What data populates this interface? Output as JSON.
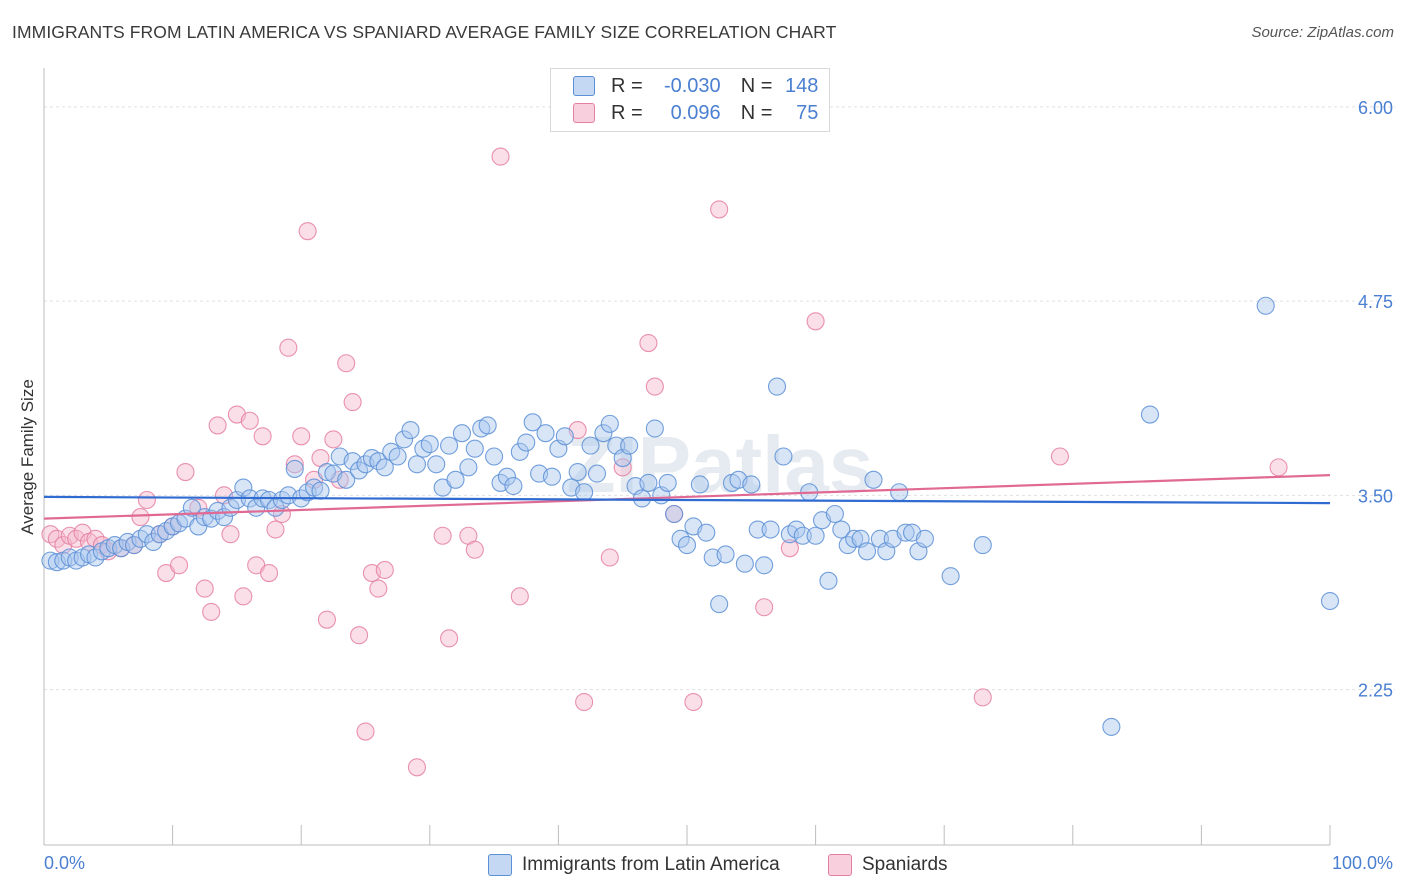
{
  "header": {
    "title": "IMMIGRANTS FROM LATIN AMERICA VS SPANIARD AVERAGE FAMILY SIZE CORRELATION CHART",
    "source": "Source: ZipAtlas.com"
  },
  "legend_top": {
    "rows": [
      {
        "r_label": "R =",
        "r_value": "-0.030",
        "n_label": "N =",
        "n_value": "148"
      },
      {
        "r_label": "R =",
        "r_value": "0.096",
        "n_label": "N =",
        "n_value": "75"
      }
    ]
  },
  "legend_bottom": {
    "series_a": "Immigrants from Latin America",
    "series_b": "Spaniards"
  },
  "colors": {
    "blue_fill": "#a9c6ee",
    "blue_stroke": "#5b8fd6",
    "blue_line": "#2f6bd0",
    "pink_fill": "#f5b8cc",
    "pink_stroke": "#e57fa1",
    "pink_line": "#e06a93",
    "tick_label": "#4a7fd1",
    "grid": "#e0e0e0",
    "watermark": "#dde3ea"
  },
  "chart_data": {
    "type": "scatter",
    "title": "IMMIGRANTS FROM LATIN AMERICA VS SPANIARD AVERAGE FAMILY SIZE CORRELATION CHART",
    "xlabel": "",
    "ylabel": "Average Family Size",
    "xlim": [
      0,
      100
    ],
    "ylim": [
      1.25,
      6.25
    ],
    "x_tick_labels": [
      "0.0%",
      "100.0%"
    ],
    "y_ticks": [
      2.25,
      3.5,
      4.75,
      6.0
    ],
    "y_tick_labels": [
      "2.25",
      "3.50",
      "4.75",
      "6.00"
    ],
    "grid": "horizontal dashed",
    "legend_position": "top-center",
    "watermark": "ZIPatlas",
    "series": [
      {
        "name": "Immigrants from Latin America",
        "R": -0.03,
        "N": 148,
        "trend": [
          [
            0,
            3.49
          ],
          [
            100,
            3.45
          ]
        ],
        "points": [
          [
            0.5,
            3.08
          ],
          [
            1,
            3.07
          ],
          [
            1.5,
            3.08
          ],
          [
            2,
            3.1
          ],
          [
            2.5,
            3.08
          ],
          [
            3,
            3.1
          ],
          [
            3.5,
            3.12
          ],
          [
            4,
            3.1
          ],
          [
            4.5,
            3.14
          ],
          [
            5,
            3.16
          ],
          [
            5.5,
            3.18
          ],
          [
            6,
            3.16
          ],
          [
            6.5,
            3.2
          ],
          [
            7,
            3.18
          ],
          [
            7.5,
            3.22
          ],
          [
            8,
            3.25
          ],
          [
            8.5,
            3.2
          ],
          [
            9,
            3.25
          ],
          [
            9.5,
            3.27
          ],
          [
            10,
            3.3
          ],
          [
            10.5,
            3.32
          ],
          [
            11,
            3.35
          ],
          [
            11.5,
            3.42
          ],
          [
            12,
            3.3
          ],
          [
            12.5,
            3.36
          ],
          [
            13,
            3.35
          ],
          [
            13.5,
            3.4
          ],
          [
            14,
            3.36
          ],
          [
            14.5,
            3.42
          ],
          [
            15,
            3.47
          ],
          [
            15.5,
            3.55
          ],
          [
            16,
            3.48
          ],
          [
            16.5,
            3.42
          ],
          [
            17,
            3.48
          ],
          [
            17.5,
            3.47
          ],
          [
            18,
            3.42
          ],
          [
            18.5,
            3.47
          ],
          [
            19,
            3.5
          ],
          [
            19.5,
            3.67
          ],
          [
            20,
            3.48
          ],
          [
            20.5,
            3.52
          ],
          [
            21,
            3.55
          ],
          [
            21.5,
            3.53
          ],
          [
            22,
            3.65
          ],
          [
            22.5,
            3.64
          ],
          [
            23,
            3.75
          ],
          [
            23.5,
            3.6
          ],
          [
            24,
            3.72
          ],
          [
            24.5,
            3.66
          ],
          [
            25,
            3.7
          ],
          [
            25.5,
            3.74
          ],
          [
            26,
            3.72
          ],
          [
            26.5,
            3.68
          ],
          [
            27,
            3.78
          ],
          [
            27.5,
            3.75
          ],
          [
            28,
            3.86
          ],
          [
            28.5,
            3.92
          ],
          [
            29,
            3.7
          ],
          [
            29.5,
            3.8
          ],
          [
            30,
            3.83
          ],
          [
            30.5,
            3.7
          ],
          [
            31,
            3.55
          ],
          [
            31.5,
            3.82
          ],
          [
            32,
            3.6
          ],
          [
            32.5,
            3.9
          ],
          [
            33,
            3.68
          ],
          [
            33.5,
            3.8
          ],
          [
            34,
            3.93
          ],
          [
            34.5,
            3.95
          ],
          [
            35,
            3.75
          ],
          [
            35.5,
            3.58
          ],
          [
            36,
            3.62
          ],
          [
            36.5,
            3.56
          ],
          [
            37,
            3.78
          ],
          [
            37.5,
            3.84
          ],
          [
            38,
            3.97
          ],
          [
            38.5,
            3.64
          ],
          [
            39,
            3.9
          ],
          [
            39.5,
            3.62
          ],
          [
            40,
            3.8
          ],
          [
            40.5,
            3.88
          ],
          [
            41,
            3.55
          ],
          [
            41.5,
            3.65
          ],
          [
            42,
            3.52
          ],
          [
            42.5,
            3.82
          ],
          [
            43,
            3.64
          ],
          [
            43.5,
            3.9
          ],
          [
            44,
            3.96
          ],
          [
            44.5,
            3.82
          ],
          [
            45,
            3.74
          ],
          [
            45.5,
            3.82
          ],
          [
            46,
            3.56
          ],
          [
            46.5,
            3.48
          ],
          [
            47,
            3.58
          ],
          [
            47.5,
            3.93
          ],
          [
            48,
            3.5
          ],
          [
            48.5,
            3.58
          ],
          [
            49,
            3.38
          ],
          [
            49.5,
            3.22
          ],
          [
            50,
            3.18
          ],
          [
            50.5,
            3.3
          ],
          [
            51,
            3.57
          ],
          [
            51.5,
            3.26
          ],
          [
            52,
            3.1
          ],
          [
            52.5,
            2.8
          ],
          [
            53,
            3.12
          ],
          [
            53.5,
            3.58
          ],
          [
            54,
            3.6
          ],
          [
            54.5,
            3.06
          ],
          [
            55,
            3.57
          ],
          [
            55.5,
            3.28
          ],
          [
            56,
            3.05
          ],
          [
            56.5,
            3.28
          ],
          [
            57,
            4.2
          ],
          [
            57.5,
            3.75
          ],
          [
            58,
            3.25
          ],
          [
            58.5,
            3.28
          ],
          [
            59,
            3.24
          ],
          [
            59.5,
            3.52
          ],
          [
            60,
            3.24
          ],
          [
            60.5,
            3.34
          ],
          [
            61,
            2.95
          ],
          [
            61.5,
            3.38
          ],
          [
            62,
            3.28
          ],
          [
            62.5,
            3.18
          ],
          [
            63,
            3.22
          ],
          [
            63.5,
            3.22
          ],
          [
            64,
            3.14
          ],
          [
            64.5,
            3.6
          ],
          [
            65,
            3.22
          ],
          [
            65.5,
            3.14
          ],
          [
            66,
            3.22
          ],
          [
            66.5,
            3.52
          ],
          [
            67,
            3.26
          ],
          [
            67.5,
            3.26
          ],
          [
            68,
            3.14
          ],
          [
            68.5,
            3.22
          ],
          [
            70.5,
            2.98
          ],
          [
            73,
            3.18
          ],
          [
            83,
            2.01
          ],
          [
            86,
            4.02
          ],
          [
            95,
            4.72
          ],
          [
            100,
            2.82
          ]
        ]
      },
      {
        "name": "Spaniards",
        "R": 0.096,
        "N": 75,
        "trend": [
          [
            0,
            3.35
          ],
          [
            100,
            3.63
          ]
        ],
        "points": [
          [
            0.5,
            3.25
          ],
          [
            1,
            3.22
          ],
          [
            1.5,
            3.18
          ],
          [
            2,
            3.24
          ],
          [
            2.5,
            3.22
          ],
          [
            3,
            3.26
          ],
          [
            3.5,
            3.2
          ],
          [
            4,
            3.22
          ],
          [
            4.5,
            3.18
          ],
          [
            5,
            3.14
          ],
          [
            6,
            3.16
          ],
          [
            7,
            3.18
          ],
          [
            7.5,
            3.36
          ],
          [
            8,
            3.47
          ],
          [
            9,
            3.25
          ],
          [
            9.5,
            3.0
          ],
          [
            10,
            3.3
          ],
          [
            10.5,
            3.05
          ],
          [
            11,
            3.65
          ],
          [
            12,
            3.42
          ],
          [
            12.5,
            2.9
          ],
          [
            13,
            2.75
          ],
          [
            13.5,
            3.95
          ],
          [
            14,
            3.5
          ],
          [
            14.5,
            3.25
          ],
          [
            15,
            4.02
          ],
          [
            15.5,
            2.85
          ],
          [
            16,
            3.98
          ],
          [
            16.5,
            3.05
          ],
          [
            17,
            3.88
          ],
          [
            17.5,
            3.0
          ],
          [
            18,
            3.28
          ],
          [
            18.5,
            3.38
          ],
          [
            19,
            4.45
          ],
          [
            19.5,
            3.7
          ],
          [
            20,
            3.88
          ],
          [
            20.5,
            5.2
          ],
          [
            21,
            3.6
          ],
          [
            21.5,
            3.74
          ],
          [
            22,
            2.7
          ],
          [
            22.5,
            3.86
          ],
          [
            23,
            3.6
          ],
          [
            23.5,
            4.35
          ],
          [
            24,
            4.1
          ],
          [
            24.5,
            2.6
          ],
          [
            25,
            1.98
          ],
          [
            25.5,
            3.0
          ],
          [
            26,
            2.9
          ],
          [
            26.5,
            3.02
          ],
          [
            29,
            1.75
          ],
          [
            31,
            3.24
          ],
          [
            31.5,
            2.58
          ],
          [
            33,
            3.24
          ],
          [
            33.5,
            3.15
          ],
          [
            35.5,
            5.68
          ],
          [
            37,
            2.85
          ],
          [
            41.5,
            3.92
          ],
          [
            42,
            2.17
          ],
          [
            44,
            3.1
          ],
          [
            45,
            3.68
          ],
          [
            47,
            4.48
          ],
          [
            47.5,
            4.2
          ],
          [
            49,
            3.38
          ],
          [
            50.5,
            2.17
          ],
          [
            52.5,
            5.34
          ],
          [
            56,
            2.78
          ],
          [
            58,
            3.16
          ],
          [
            60,
            4.62
          ],
          [
            73,
            2.2
          ],
          [
            79,
            3.75
          ],
          [
            96,
            3.68
          ]
        ]
      }
    ]
  }
}
